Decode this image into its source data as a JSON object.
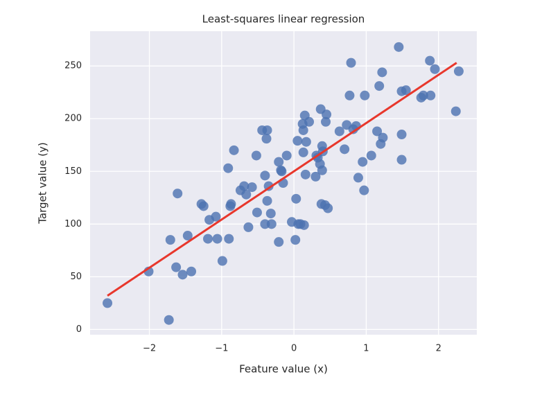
{
  "chart_data": {
    "type": "scatter",
    "title": "Least-squares linear regression",
    "xlabel": "Feature value (x)",
    "ylabel": "Target value (y)",
    "x": [
      -2.58,
      -2.01,
      -1.73,
      -1.71,
      -1.63,
      -1.61,
      -1.54,
      -1.47,
      -1.42,
      -1.28,
      -1.25,
      -1.17,
      -1.19,
      -1.08,
      -1.06,
      -0.99,
      -0.91,
      -0.9,
      -0.88,
      -0.87,
      -0.83,
      -0.74,
      -0.69,
      -0.66,
      -0.63,
      -0.58,
      -0.52,
      -0.51,
      -0.44,
      -0.4,
      -0.4,
      -0.38,
      -0.37,
      -0.37,
      -0.35,
      -0.32,
      -0.31,
      -0.21,
      -0.21,
      -0.18,
      -0.17,
      -0.15,
      -0.1,
      -0.03,
      0.02,
      0.03,
      0.05,
      0.06,
      0.09,
      0.12,
      0.13,
      0.14,
      0.13,
      0.15,
      0.16,
      0.17,
      0.21,
      0.3,
      0.31,
      0.33,
      0.36,
      0.37,
      0.38,
      0.39,
      0.39,
      0.4,
      0.43,
      0.44,
      0.45,
      0.47,
      0.63,
      0.7,
      0.73,
      0.77,
      0.79,
      0.82,
      0.86,
      0.89,
      0.95,
      0.97,
      0.98,
      1.07,
      1.15,
      1.18,
      1.2,
      1.22,
      1.23,
      1.45,
      1.49,
      1.49,
      1.49,
      1.55,
      1.76,
      1.79,
      1.88,
      1.89,
      1.95,
      2.24,
      2.28
    ],
    "y": [
      25,
      55,
      9,
      85,
      59,
      129,
      52,
      89,
      55,
      119,
      117,
      104,
      86,
      107,
      86,
      65,
      153,
      86,
      117,
      119,
      170,
      132,
      136,
      128,
      97,
      135,
      165,
      111,
      189,
      146,
      100,
      181,
      189,
      122,
      136,
      110,
      100,
      83,
      159,
      151,
      150,
      139,
      165,
      102,
      85,
      124,
      179,
      100,
      100,
      195,
      189,
      99,
      168,
      203,
      147,
      178,
      197,
      145,
      165,
      163,
      157,
      209,
      119,
      151,
      174,
      169,
      118,
      197,
      204,
      115,
      188,
      171,
      194,
      222,
      253,
      190,
      193,
      144,
      159,
      132,
      222,
      165,
      188,
      231,
      176,
      244,
      182,
      268,
      185,
      161,
      226,
      227,
      220,
      222,
      255,
      222,
      247,
      207,
      245
    ],
    "color": "#4c72b0",
    "fit": {
      "type": "line",
      "x": [
        -2.58,
        2.25
      ],
      "y": [
        32,
        253
      ],
      "color": "#e8372c"
    },
    "xlim": [
      -2.82,
      2.53
    ],
    "ylim": [
      -5,
      283
    ],
    "xticks": [
      {
        "value": -2,
        "label": "−2"
      },
      {
        "value": -1,
        "label": "−1"
      },
      0,
      1,
      2
    ],
    "yticks": [
      0,
      50,
      100,
      150,
      200,
      250
    ],
    "grid": true
  }
}
